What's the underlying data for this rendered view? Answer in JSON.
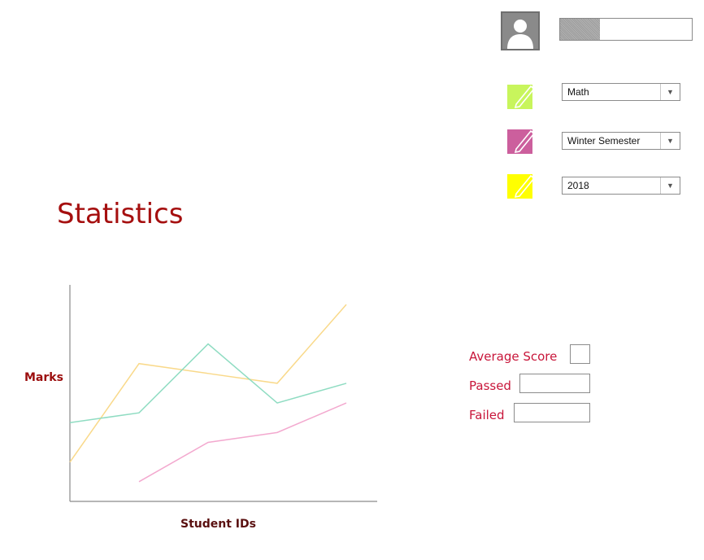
{
  "user": {
    "avatar_icon": "user-silhouette-icon",
    "progress_fraction": 0.3
  },
  "filters": [
    {
      "icon": "edit-note-icon",
      "color": "#c8f55c",
      "value": "Math"
    },
    {
      "icon": "edit-note-icon",
      "color": "#cc5f9d",
      "value": "Winter Semester"
    },
    {
      "icon": "edit-note-icon",
      "color": "#ffff00",
      "value": "2018"
    }
  ],
  "page_title": "Statistics",
  "chart_data": {
    "type": "line",
    "title": "",
    "xlabel": "Student IDs",
    "ylabel": "Marks",
    "x": [
      0,
      1,
      2,
      3,
      4
    ],
    "ylim": [
      0,
      11
    ],
    "grid": false,
    "series": [
      {
        "color": "#f9d98a",
        "values": [
          2,
          7,
          6.5,
          6,
          10
        ]
      },
      {
        "color": "#8fdcc2",
        "values": [
          4,
          4.5,
          8,
          5,
          6
        ]
      },
      {
        "color": "#f3a9cf",
        "values": [
          null,
          1,
          3,
          3.5,
          5
        ]
      }
    ]
  },
  "stats": {
    "average_label": "Average Score",
    "average_value": "",
    "passed_label": "Passed",
    "passed_value": "",
    "failed_label": "Failed",
    "failed_value": ""
  }
}
